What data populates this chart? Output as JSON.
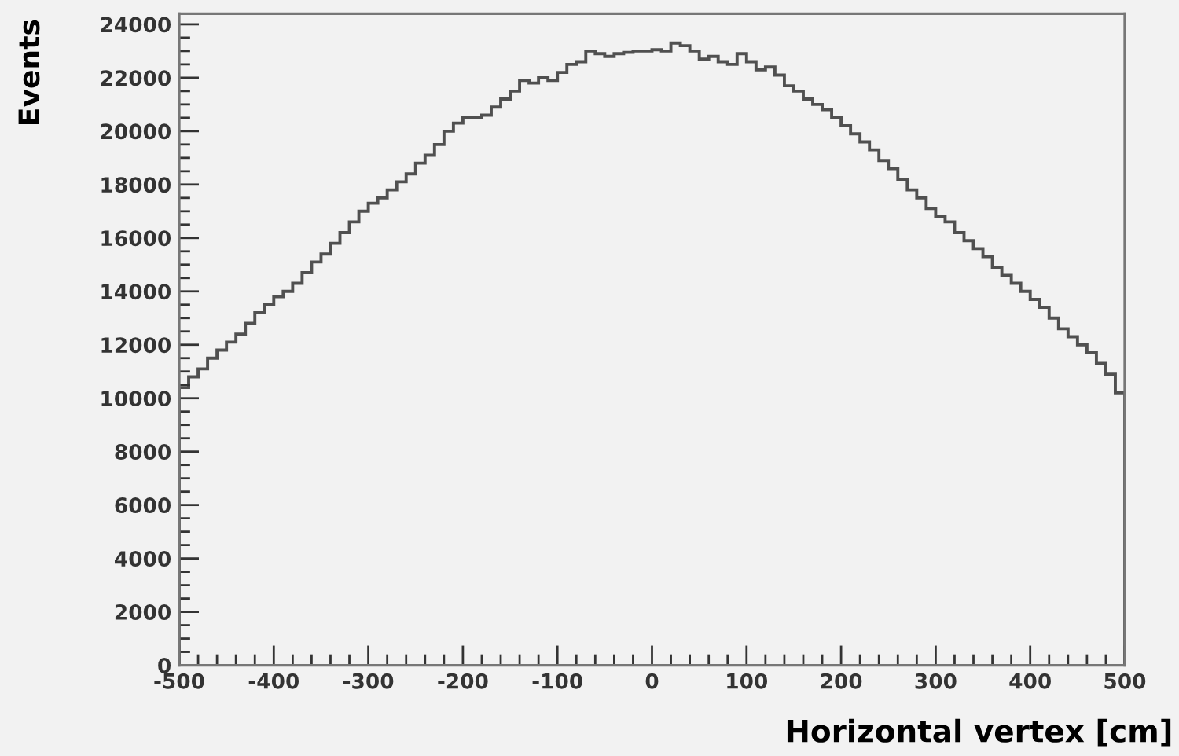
{
  "chart_data": {
    "type": "histogram",
    "xlabel": "Horizontal vertex [cm]",
    "ylabel": "Events",
    "color": "#505050",
    "bins": [
      -500,
      -490,
      -480,
      -470,
      -460,
      -450,
      -440,
      -430,
      -420,
      -410,
      -400,
      -390,
      -380,
      -370,
      -360,
      -350,
      -340,
      -330,
      -320,
      -310,
      -300,
      -290,
      -280,
      -270,
      -260,
      -250,
      -240,
      -230,
      -220,
      -210,
      -200,
      -190,
      -180,
      -170,
      -160,
      -150,
      -140,
      -130,
      -120,
      -110,
      -100,
      -90,
      -80,
      -70,
      -60,
      -50,
      -40,
      -30,
      -20,
      -10,
      0,
      10,
      20,
      30,
      40,
      50,
      60,
      70,
      80,
      90,
      100,
      110,
      120,
      130,
      140,
      150,
      160,
      170,
      180,
      190,
      200,
      210,
      220,
      230,
      240,
      250,
      260,
      270,
      280,
      290,
      300,
      310,
      320,
      330,
      340,
      350,
      360,
      370,
      380,
      390,
      400,
      410,
      420,
      430,
      440,
      450,
      460,
      470,
      480,
      490,
      500
    ],
    "values": [
      10400,
      10800,
      11100,
      11500,
      11800,
      12100,
      12400,
      12800,
      13200,
      13500,
      13800,
      14000,
      14300,
      14700,
      15100,
      15400,
      15800,
      16200,
      16600,
      17000,
      17300,
      17500,
      17800,
      18100,
      18400,
      18800,
      19100,
      19500,
      20000,
      20300,
      20500,
      20500,
      20600,
      20900,
      21200,
      21500,
      21900,
      21800,
      22000,
      21900,
      22200,
      22500,
      22600,
      23000,
      22900,
      22800,
      22900,
      22950,
      23000,
      23000,
      23050,
      23000,
      23300,
      23200,
      23000,
      22700,
      22800,
      22600,
      22500,
      22900,
      22600,
      22300,
      22400,
      22100,
      21700,
      21500,
      21200,
      21000,
      20800,
      20500,
      20200,
      19900,
      19600,
      19300,
      18900,
      18600,
      18200,
      17800,
      17500,
      17100,
      16800,
      16600,
      16200,
      15900,
      15600,
      15300,
      14900,
      14600,
      14300,
      14000,
      13700,
      13400,
      13000,
      12600,
      12300,
      12000,
      11700,
      11300,
      10900,
      10200
    ],
    "xlim": [
      -500,
      500
    ],
    "xticks": [
      -500,
      -400,
      -300,
      -200,
      -100,
      0,
      100,
      200,
      300,
      400,
      500
    ],
    "ylim": [
      0,
      24400
    ],
    "yticks": [
      0,
      2000,
      4000,
      6000,
      8000,
      10000,
      12000,
      14000,
      16000,
      18000,
      20000,
      22000,
      24000
    ],
    "grid": false
  }
}
